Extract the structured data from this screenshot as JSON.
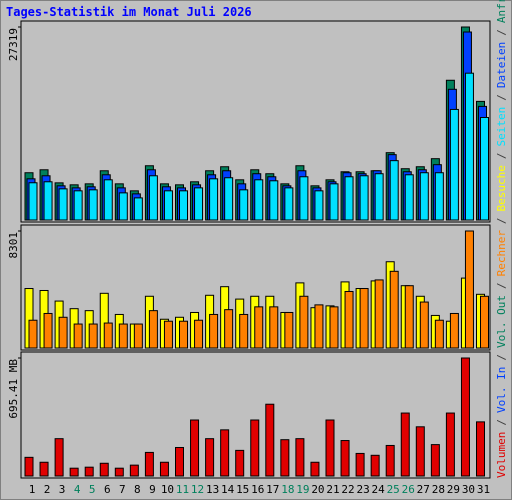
{
  "chart_data": [
    {
      "type": "bar",
      "title": "Tages-Statistik im Monat Juli 2026",
      "ylim": [
        0,
        27319
      ],
      "yticks": [
        27319
      ],
      "series": [
        {
          "name": "Anfragen",
          "color": "#00805c",
          "values": [
            6690,
            7110,
            5260,
            4980,
            5120,
            6970,
            5120,
            4130,
            7680,
            5120,
            4980,
            5410,
            6970,
            7540,
            5690,
            7110,
            6550,
            5120,
            7680,
            4840,
            5690,
            6830,
            6830,
            6970,
            9530,
            7260,
            7540,
            8680,
            19780,
            27319,
            16790
          ]
        },
        {
          "name": "Dateien",
          "color": "#0040ff",
          "values": [
            5830,
            6260,
            4840,
            4550,
            4700,
            6400,
            4550,
            3700,
            7110,
            4700,
            4550,
            4980,
            6400,
            6970,
            5120,
            6550,
            6120,
            4840,
            6970,
            4550,
            5410,
            6690,
            6550,
            6970,
            9250,
            6830,
            7110,
            7830,
            18500,
            26610,
            16080
          ]
        },
        {
          "name": "Seiten",
          "color": "#00e0ff",
          "values": [
            5270,
            5410,
            4410,
            4130,
            4270,
            5690,
            3840,
            3130,
            6260,
            4130,
            4130,
            4550,
            5830,
            5980,
            4270,
            5690,
            5550,
            4550,
            6120,
            4130,
            5120,
            6120,
            6260,
            6550,
            8400,
            6400,
            6690,
            6690,
            15650,
            20780,
            14510
          ]
        }
      ]
    },
    {
      "type": "bar",
      "ylim": [
        0,
        8301
      ],
      "yticks": [
        8301
      ],
      "series": [
        {
          "name": "Besuche",
          "color": "#ffff00",
          "values": [
            4220,
            4080,
            3330,
            2790,
            2650,
            3880,
            2380,
            1700,
            3670,
            2040,
            2180,
            2520,
            3740,
            4350,
            3470,
            3670,
            3670,
            2520,
            4620,
            2860,
            2990,
            4690,
            4220,
            4760,
            6120,
            4420,
            3670,
            2310,
            1900,
            4960,
            3810
          ]
        },
        {
          "name": "Rechner",
          "color": "#ff8000",
          "values": [
            1970,
            2450,
            2180,
            1700,
            1700,
            1770,
            1700,
            1700,
            2650,
            1900,
            1900,
            1970,
            2380,
            2720,
            2380,
            2920,
            2920,
            2520,
            3670,
            3060,
            2920,
            4010,
            4220,
            4830,
            5440,
            4420,
            3260,
            1970,
            2450,
            8301,
            3670
          ]
        }
      ]
    },
    {
      "type": "bar",
      "ylim": [
        0,
        695.41
      ],
      "yticks": [
        {
          "value": 695.41,
          "label": "695.41 MB"
        }
      ],
      "categories": [
        "1",
        "2",
        "3",
        "4",
        "5",
        "6",
        "7",
        "8",
        "9",
        "10",
        "11",
        "12",
        "13",
        "14",
        "15",
        "16",
        "17",
        "18",
        "19",
        "20",
        "21",
        "22",
        "23",
        "24",
        "25",
        "26",
        "27",
        "28",
        "29",
        "30",
        "31"
      ],
      "category_colors": [
        "#000000",
        "#000000",
        "#000000",
        "#00805c",
        "#00805c",
        "#000000",
        "#000000",
        "#000000",
        "#000000",
        "#000000",
        "#00805c",
        "#00805c",
        "#000000",
        "#000000",
        "#000000",
        "#000000",
        "#000000",
        "#00805c",
        "#00805c",
        "#000000",
        "#000000",
        "#000000",
        "#000000",
        "#000000",
        "#00805c",
        "#00805c",
        "#000000",
        "#000000",
        "#000000",
        "#000000",
        "#000000"
      ],
      "legend_separator": "/",
      "series": [
        {
          "name": "Volumen",
          "color": "#e00000",
          "values": [
            110,
            81,
            220,
            46,
            52,
            75,
            46,
            64,
            139,
            81,
            168,
            330,
            220,
            272,
            151,
            330,
            423,
            214,
            220,
            81,
            330,
            209,
            133,
            122,
            180,
            371,
            290,
            185,
            371,
            695.41,
            319
          ]
        },
        {
          "name": "Vol. In",
          "color": "#0040ff",
          "values": [
            0,
            0,
            0,
            0,
            0,
            0,
            0,
            0,
            0,
            0,
            0,
            0,
            0,
            0,
            0,
            0,
            0,
            0,
            0,
            0,
            0,
            0,
            0,
            0,
            0,
            0,
            0,
            0,
            0,
            0,
            0
          ]
        },
        {
          "name": "Vol. Out",
          "color": "#00805c",
          "values": [
            0,
            0,
            0,
            0,
            0,
            0,
            0,
            0,
            0,
            0,
            0,
            0,
            0,
            0,
            0,
            0,
            0,
            0,
            0,
            0,
            0,
            0,
            0,
            0,
            0,
            0,
            0,
            0,
            0,
            0,
            0
          ]
        }
      ]
    }
  ]
}
